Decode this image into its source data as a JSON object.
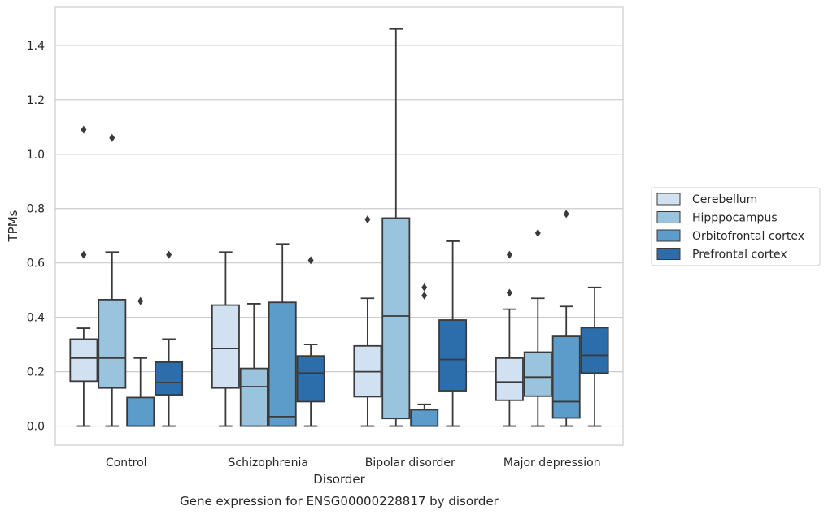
{
  "caption": "Gene expression for ENSG00000228817 by disorder",
  "chart_data": {
    "type": "box",
    "xlabel": "Disorder",
    "ylabel": "TPMs",
    "ylim": [
      -0.07,
      1.54
    ],
    "yticks": [
      "0.0",
      "0.2",
      "0.4",
      "0.6",
      "0.8",
      "1.0",
      "1.2",
      "1.4"
    ],
    "grid": true,
    "legend_position": "right",
    "categories": [
      "Control",
      "Schizophrenia",
      "Bipolar disorder",
      "Major depression"
    ],
    "series": [
      {
        "name": "Cerebellum",
        "color": "#d1e1f1",
        "boxes": [
          {
            "whisker_low": 0.0,
            "q1": 0.165,
            "median": 0.25,
            "q3": 0.32,
            "whisker_high": 0.36,
            "outliers": [
              0.63,
              1.09
            ]
          },
          {
            "whisker_low": 0.0,
            "q1": 0.14,
            "median": 0.285,
            "q3": 0.445,
            "whisker_high": 0.64,
            "outliers": []
          },
          {
            "whisker_low": 0.0,
            "q1": 0.108,
            "median": 0.2,
            "q3": 0.295,
            "whisker_high": 0.47,
            "outliers": [
              0.76
            ]
          },
          {
            "whisker_low": 0.0,
            "q1": 0.095,
            "median": 0.162,
            "q3": 0.25,
            "whisker_high": 0.43,
            "outliers": [
              0.49,
              0.63
            ]
          }
        ]
      },
      {
        "name": "Hipppocampus",
        "color": "#9ac4dd",
        "boxes": [
          {
            "whisker_low": 0.0,
            "q1": 0.14,
            "median": 0.25,
            "q3": 0.465,
            "whisker_high": 0.64,
            "outliers": [
              1.06
            ]
          },
          {
            "whisker_low": 0.0,
            "q1": 0.0,
            "median": 0.145,
            "q3": 0.212,
            "whisker_high": 0.45,
            "outliers": []
          },
          {
            "whisker_low": 0.0,
            "q1": 0.028,
            "median": 0.405,
            "q3": 0.765,
            "whisker_high": 1.46,
            "outliers": []
          },
          {
            "whisker_low": 0.0,
            "q1": 0.11,
            "median": 0.18,
            "q3": 0.272,
            "whisker_high": 0.47,
            "outliers": [
              0.71
            ]
          }
        ]
      },
      {
        "name": "Orbitofrontal cortex",
        "color": "#5c9cca",
        "boxes": [
          {
            "whisker_low": 0.0,
            "q1": 0.0,
            "median": 0.0,
            "q3": 0.105,
            "whisker_high": 0.25,
            "outliers": [
              0.46
            ]
          },
          {
            "whisker_low": 0.0,
            "q1": 0.0,
            "median": 0.035,
            "q3": 0.455,
            "whisker_high": 0.67,
            "outliers": []
          },
          {
            "whisker_low": 0.0,
            "q1": 0.0,
            "median": 0.0,
            "q3": 0.06,
            "whisker_high": 0.08,
            "outliers": [
              0.48,
              0.51
            ]
          },
          {
            "whisker_low": 0.0,
            "q1": 0.03,
            "median": 0.09,
            "q3": 0.33,
            "whisker_high": 0.44,
            "outliers": [
              0.78
            ]
          }
        ]
      },
      {
        "name": "Prefrontal cortex",
        "color": "#2c6eac",
        "boxes": [
          {
            "whisker_low": 0.0,
            "q1": 0.115,
            "median": 0.16,
            "q3": 0.235,
            "whisker_high": 0.32,
            "outliers": [
              0.63
            ]
          },
          {
            "whisker_low": 0.0,
            "q1": 0.09,
            "median": 0.195,
            "q3": 0.258,
            "whisker_high": 0.3,
            "outliers": [
              0.61
            ]
          },
          {
            "whisker_low": 0.0,
            "q1": 0.13,
            "median": 0.245,
            "q3": 0.39,
            "whisker_high": 0.68,
            "outliers": []
          },
          {
            "whisker_low": 0.0,
            "q1": 0.195,
            "median": 0.26,
            "q3": 0.362,
            "whisker_high": 0.51,
            "outliers": []
          }
        ]
      }
    ]
  }
}
